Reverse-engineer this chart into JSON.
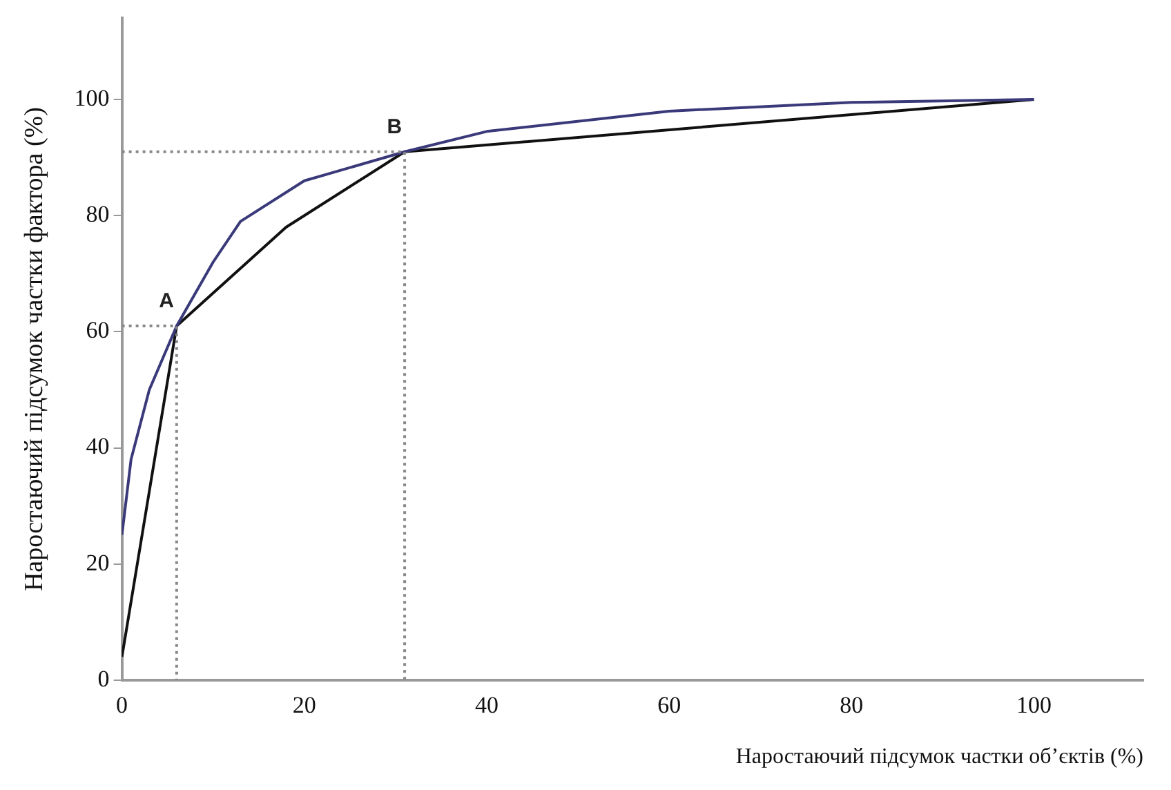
{
  "chart_data": {
    "type": "line",
    "xlabel": "Наростаючий підсумок частки об’єктів (%)",
    "ylabel": "Наростаючий підсумок частки фактора (%)",
    "xlim": [
      0,
      112
    ],
    "ylim": [
      0,
      114
    ],
    "xticks": [
      0,
      20,
      40,
      60,
      80,
      100
    ],
    "yticks": [
      0,
      20,
      40,
      60,
      80,
      100
    ],
    "grid": false,
    "legend": false,
    "marker": "none",
    "series": [
      {
        "color": "#888888",
        "line_style": "dotted",
        "x": [
          0,
          6,
          6
        ],
        "values": [
          61,
          61,
          0
        ]
      },
      {
        "color": "#888888",
        "line_style": "dotted",
        "x": [
          0,
          31,
          31
        ],
        "values": [
          91,
          91,
          0
        ]
      },
      {
        "color": "#3a3a7a",
        "line_style": "solid",
        "x": [
          0,
          1,
          3,
          6,
          10,
          13,
          20,
          31,
          40,
          60,
          80,
          100
        ],
        "values": [
          25,
          38,
          50,
          61,
          72,
          79,
          86,
          91,
          94.5,
          98,
          99.5,
          100
        ]
      },
      {
        "color": "#111111",
        "line_style": "solid",
        "x": [
          0,
          6,
          18,
          31,
          100
        ],
        "values": [
          4,
          61,
          78,
          91,
          100
        ]
      }
    ],
    "annotations": [
      {
        "text": "A",
        "x": 6,
        "y": 61
      },
      {
        "text": "B",
        "x": 31,
        "y": 91
      }
    ]
  }
}
